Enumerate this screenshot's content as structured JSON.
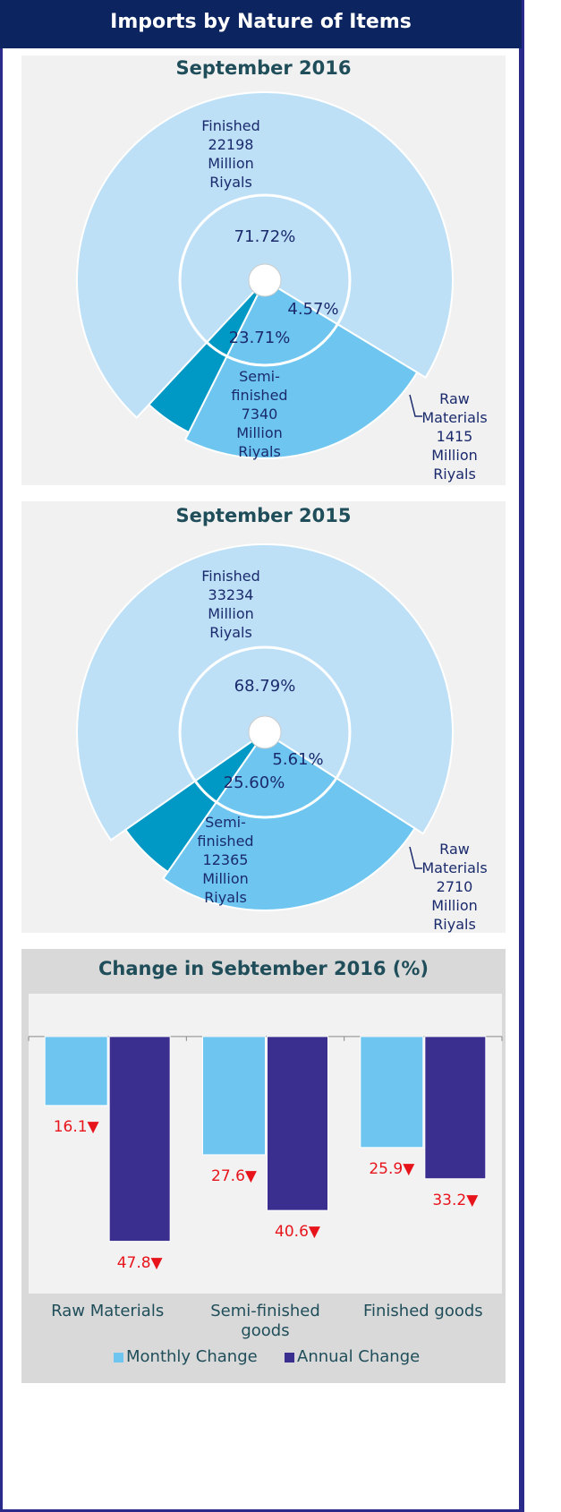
{
  "header": {
    "title": "Imports by Nature of Items"
  },
  "chart_data": [
    {
      "type": "pie",
      "title": "September 2016",
      "categories": [
        "Finished",
        "Semi-finished",
        "Raw Materials"
      ],
      "values": [
        71.72,
        23.71,
        4.57
      ],
      "value_labels": [
        "71.72%",
        "23.71%",
        "4.57%"
      ],
      "amounts": [
        22198,
        7340,
        1415
      ],
      "unit": "Million Riyals",
      "colors": [
        "#bde0f7",
        "#6ec6f0",
        "#0098c4"
      ]
    },
    {
      "type": "pie",
      "title": "September 2015",
      "categories": [
        "Finished",
        "Semi-finished",
        "Raw Materials"
      ],
      "values": [
        68.79,
        25.6,
        5.61
      ],
      "value_labels": [
        "68.79%",
        "25.60%",
        "5.61%"
      ],
      "amounts": [
        33234,
        12365,
        2710
      ],
      "unit": "Million Riyals",
      "colors": [
        "#bde0f7",
        "#6ec6f0",
        "#0098c4"
      ]
    },
    {
      "type": "bar",
      "title": "Change in Sebtember 2016 (%)",
      "categories": [
        "Raw Materials",
        "Semi-finished goods",
        "Finished goods"
      ],
      "series": [
        {
          "name": "Monthly Change",
          "color": "#6ec6f0",
          "values": [
            -16.1,
            -27.6,
            -25.9
          ],
          "value_labels": [
            "16.1▼",
            "27.6▼",
            "25.9▼"
          ]
        },
        {
          "name": "Annual Change",
          "color": "#3a2f8f",
          "values": [
            -47.8,
            -40.6,
            -33.2
          ],
          "value_labels": [
            "47.8▼",
            "40.6▼",
            "33.2▼"
          ]
        }
      ],
      "ylim": [
        -60,
        10
      ],
      "legend": "bottom"
    }
  ]
}
